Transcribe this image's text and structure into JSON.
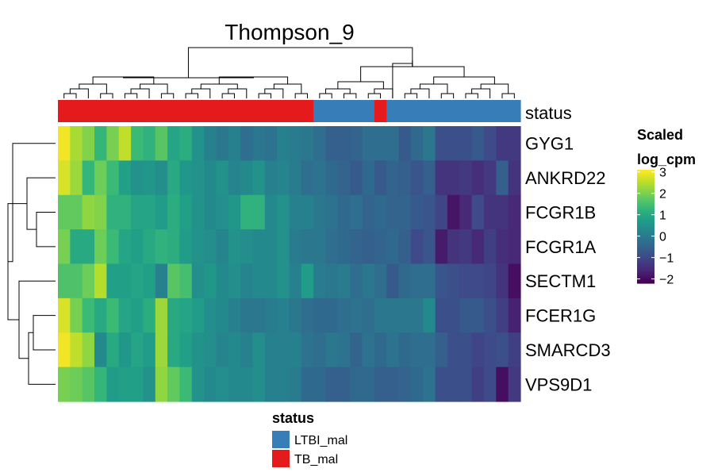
{
  "chart_data": {
    "type": "heatmap",
    "title": "Thompson_9",
    "rows": [
      "GYG1",
      "ANKRD22",
      "FCGR1B",
      "FCGR1A",
      "SECTM1",
      "FCER1G",
      "SMARCD3",
      "VPS9D1"
    ],
    "annotation": {
      "label": "status",
      "values": [
        "TB_mal",
        "TB_mal",
        "TB_mal",
        "TB_mal",
        "TB_mal",
        "TB_mal",
        "TB_mal",
        "TB_mal",
        "TB_mal",
        "TB_mal",
        "TB_mal",
        "TB_mal",
        "TB_mal",
        "TB_mal",
        "TB_mal",
        "TB_mal",
        "TB_mal",
        "TB_mal",
        "TB_mal",
        "TB_mal",
        "TB_mal",
        "LTBI_mal",
        "LTBI_mal",
        "LTBI_mal",
        "LTBI_mal",
        "LTBI_mal",
        "TB_mal",
        "LTBI_mal",
        "LTBI_mal",
        "LTBI_mal",
        "LTBI_mal",
        "LTBI_mal",
        "LTBI_mal",
        "LTBI_mal",
        "LTBI_mal",
        "LTBI_mal",
        "LTBI_mal",
        "LTBI_mal"
      ]
    },
    "values": [
      [
        3.0,
        2.4,
        2.1,
        1.3,
        2.0,
        2.6,
        1.4,
        1.2,
        1.7,
        0.9,
        1.1,
        0.5,
        0.1,
        -0.1,
        0.1,
        -0.3,
        -0.1,
        -0.2,
        0.1,
        0.0,
        -0.1,
        -0.3,
        -0.6,
        -0.6,
        -0.5,
        -0.3,
        -0.3,
        -0.3,
        -0.7,
        -0.4,
        -0.1,
        -0.9,
        -0.9,
        -0.9,
        -0.7,
        -1.0,
        -1.3,
        -1.3
      ],
      [
        2.8,
        2.3,
        1.3,
        1.9,
        1.4,
        0.8,
        0.5,
        0.6,
        0.4,
        1.0,
        0.6,
        0.5,
        0.3,
        0.5,
        0.2,
        0.3,
        0.5,
        0.1,
        0.2,
        0.0,
        -0.3,
        -0.2,
        -0.4,
        -0.5,
        -0.7,
        -0.4,
        -0.7,
        -0.5,
        -0.6,
        -0.8,
        -0.6,
        -1.4,
        -1.4,
        -1.3,
        -1.5,
        -1.3,
        -0.6,
        -1.4
      ],
      [
        1.8,
        1.8,
        2.2,
        2.1,
        1.2,
        1.2,
        0.9,
        0.9,
        0.7,
        1.1,
        0.8,
        0.5,
        0.3,
        0.4,
        0.6,
        1.2,
        1.2,
        0.3,
        0.5,
        0.1,
        0.1,
        -0.1,
        -0.2,
        -0.4,
        -0.3,
        -0.5,
        -0.4,
        -0.5,
        -0.5,
        -0.7,
        -0.8,
        -1.1,
        -1.9,
        -1.6,
        -1.0,
        -1.4,
        -1.4,
        -1.6
      ],
      [
        2.0,
        1.0,
        1.0,
        1.9,
        1.4,
        0.9,
        0.8,
        1.0,
        1.2,
        1.1,
        0.7,
        0.5,
        0.4,
        0.2,
        0.5,
        0.4,
        0.3,
        0.3,
        0.5,
        0.0,
        -0.1,
        -0.1,
        -0.3,
        -0.4,
        -0.5,
        -0.6,
        -0.5,
        -0.4,
        -0.6,
        -1.0,
        -0.8,
        -1.8,
        -1.4,
        -1.3,
        -1.6,
        -1.2,
        -1.5,
        -1.6
      ],
      [
        1.6,
        1.6,
        1.9,
        2.5,
        0.8,
        0.8,
        0.9,
        0.8,
        0.1,
        1.7,
        1.5,
        0.4,
        0.6,
        0.3,
        0.4,
        0.2,
        0.3,
        0.3,
        0.5,
        0.1,
        0.7,
        0.0,
        -0.1,
        0.0,
        -0.3,
        -0.1,
        -0.3,
        -0.7,
        -0.4,
        -0.3,
        -0.3,
        -0.8,
        -0.9,
        -1.0,
        -1.0,
        -1.1,
        -1.4,
        -2.0
      ],
      [
        2.8,
        2.0,
        1.4,
        1.0,
        1.4,
        0.9,
        0.8,
        1.1,
        2.3,
        1.0,
        0.9,
        0.7,
        0.4,
        0.3,
        0.1,
        -0.1,
        -0.1,
        0.0,
        0.1,
        -0.1,
        -0.3,
        -0.4,
        -0.4,
        -0.3,
        -0.2,
        -0.3,
        -0.1,
        -0.1,
        -0.1,
        -0.1,
        0.3,
        -0.9,
        -0.9,
        -0.7,
        -0.7,
        -0.9,
        -1.2,
        -1.7
      ],
      [
        3.0,
        2.6,
        2.2,
        0.3,
        1.0,
        0.6,
        0.9,
        0.7,
        2.3,
        1.0,
        0.8,
        0.5,
        0.4,
        0.2,
        0.3,
        0.1,
        0.4,
        0.1,
        0.1,
        0.1,
        -0.2,
        -0.3,
        -0.1,
        -0.2,
        -0.5,
        -0.2,
        -0.4,
        -0.2,
        -0.4,
        -0.3,
        -0.3,
        -0.6,
        -0.9,
        -0.9,
        -1.1,
        -1.0,
        -0.9,
        -1.2
      ],
      [
        2.0,
        1.9,
        1.7,
        1.3,
        0.7,
        0.8,
        0.8,
        0.5,
        2.2,
        1.8,
        1.4,
        0.5,
        0.3,
        0.4,
        0.3,
        0.3,
        0.4,
        0.1,
        0.1,
        0.0,
        -0.4,
        -0.4,
        -0.6,
        -0.6,
        -0.4,
        -0.4,
        -0.6,
        -0.6,
        -0.5,
        -0.4,
        -0.2,
        -0.9,
        -0.9,
        -0.9,
        -1.2,
        -1.0,
        -2.0,
        -1.3
      ]
    ],
    "colorbar": {
      "title": [
        "Scaled",
        "log_cpm"
      ],
      "range": [
        -2.2,
        3.1
      ],
      "ticks": [
        3,
        2,
        1,
        0,
        -1,
        -2
      ],
      "tick_labels": [
        "3",
        "2",
        "1",
        "0",
        "−1",
        "−2"
      ],
      "palette": [
        "#440154",
        "#482878",
        "#3e4989",
        "#31688e",
        "#26828e",
        "#1f9e89",
        "#35b779",
        "#6ece58",
        "#b5de2b",
        "#fde725"
      ]
    },
    "legend": {
      "title": "status",
      "items": [
        {
          "label": "LTBI_mal",
          "color": "#377eb8"
        },
        {
          "label": "TB_mal",
          "color": "#e41a1c"
        }
      ]
    },
    "row_dendrogram": true,
    "column_dendrogram": true
  }
}
